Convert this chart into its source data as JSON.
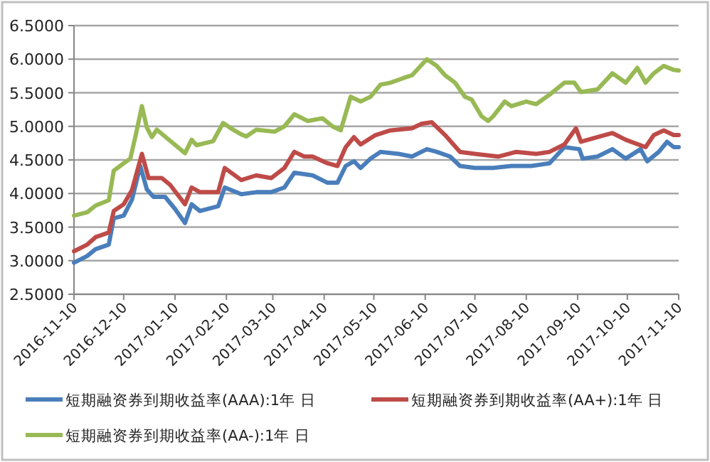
{
  "chart_data": {
    "type": "line",
    "xlim": [
      "2016-11-10",
      "2017-11-10"
    ],
    "xticks": [
      "2016-11-10",
      "2016-12-10",
      "2017-01-10",
      "2017-02-10",
      "2017-03-10",
      "2017-04-10",
      "2017-05-10",
      "2017-06-10",
      "2017-07-10",
      "2017-08-10",
      "2017-09-10",
      "2017-10-10",
      "2017-11-10"
    ],
    "ylim": [
      2.5,
      6.5
    ],
    "yticks": [
      {
        "value": 2.5,
        "label": "2.5000"
      },
      {
        "value": 3,
        "label": "3.0000"
      },
      {
        "value": 3.5,
        "label": "3.5000"
      },
      {
        "value": 4,
        "label": "4.0000"
      },
      {
        "value": 4.5,
        "label": "4.5000"
      },
      {
        "value": 5,
        "label": "5.0000"
      },
      {
        "value": 5.5,
        "label": "5.5000"
      },
      {
        "value": 6,
        "label": "6.0000"
      },
      {
        "value": 6.5,
        "label": "6.5000"
      }
    ],
    "grid": "y",
    "legend": "bottom",
    "line_style": "solid",
    "marker": "none",
    "series": [
      {
        "name": "短期融资券到期收益率(AAA):1年 日",
        "color": "#4a7ebb",
        "x": [
          "2016-11-10",
          "2016-11-18",
          "2016-11-23",
          "2016-12-01",
          "2016-12-04",
          "2016-12-10",
          "2016-12-15",
          "2016-12-20",
          "2016-12-24",
          "2016-12-28",
          "2017-01-04",
          "2017-01-10",
          "2017-01-16",
          "2017-01-20",
          "2017-01-25",
          "2017-02-05",
          "2017-02-09",
          "2017-02-19",
          "2017-02-28",
          "2017-03-09",
          "2017-03-17",
          "2017-03-23",
          "2017-04-03",
          "2017-04-12",
          "2017-04-18",
          "2017-04-23",
          "2017-04-28",
          "2017-05-02",
          "2017-05-08",
          "2017-05-14",
          "2017-05-25",
          "2017-06-02",
          "2017-06-11",
          "2017-06-17",
          "2017-06-25",
          "2017-07-01",
          "2017-07-10",
          "2017-07-21",
          "2017-08-01",
          "2017-08-13",
          "2017-08-24",
          "2017-09-02",
          "2017-09-11",
          "2017-09-13",
          "2017-09-22",
          "2017-10-01",
          "2017-10-09",
          "2017-10-18",
          "2017-10-22",
          "2017-10-29",
          "2017-11-03",
          "2017-11-07",
          "2017-11-10"
        ],
        "values": [
          2.97,
          3.07,
          3.17,
          3.24,
          3.63,
          3.67,
          3.91,
          4.41,
          4.06,
          3.95,
          3.95,
          3.77,
          3.56,
          3.84,
          3.74,
          3.81,
          4.09,
          3.99,
          4.02,
          4.02,
          4.09,
          4.31,
          4.27,
          4.16,
          4.16,
          4.41,
          4.48,
          4.38,
          4.52,
          4.62,
          4.59,
          4.55,
          4.66,
          4.62,
          4.55,
          4.41,
          4.38,
          4.38,
          4.41,
          4.41,
          4.45,
          4.69,
          4.66,
          4.52,
          4.55,
          4.66,
          4.52,
          4.66,
          4.48,
          4.62,
          4.77,
          4.69,
          4.69
        ]
      },
      {
        "name": "短期融资券到期收益率(AA+):1年 日",
        "color": "#be4b48",
        "x": [
          "2016-11-10",
          "2016-11-18",
          "2016-11-23",
          "2016-12-01",
          "2016-12-04",
          "2016-12-10",
          "2016-12-15",
          "2016-12-21",
          "2016-12-25",
          "2017-01-02",
          "2017-01-07",
          "2017-01-16",
          "2017-01-20",
          "2017-01-25",
          "2017-02-05",
          "2017-02-09",
          "2017-02-19",
          "2017-02-28",
          "2017-03-09",
          "2017-03-17",
          "2017-03-23",
          "2017-03-29",
          "2017-04-03",
          "2017-04-12",
          "2017-04-18",
          "2017-04-23",
          "2017-04-28",
          "2017-05-02",
          "2017-05-11",
          "2017-05-20",
          "2017-06-02",
          "2017-06-08",
          "2017-06-14",
          "2017-06-22",
          "2017-07-01",
          "2017-07-10",
          "2017-07-24",
          "2017-08-04",
          "2017-08-16",
          "2017-08-24",
          "2017-09-02",
          "2017-09-09",
          "2017-09-12",
          "2017-09-22",
          "2017-10-01",
          "2017-10-09",
          "2017-10-21",
          "2017-10-26",
          "2017-11-01",
          "2017-11-07",
          "2017-11-10"
        ],
        "values": [
          3.14,
          3.24,
          3.35,
          3.42,
          3.74,
          3.84,
          4.05,
          4.59,
          4.23,
          4.23,
          4.13,
          3.84,
          4.09,
          4.02,
          4.02,
          4.38,
          4.2,
          4.27,
          4.23,
          4.38,
          4.62,
          4.55,
          4.55,
          4.45,
          4.41,
          4.69,
          4.84,
          4.73,
          4.87,
          4.94,
          4.97,
          5.04,
          5.06,
          4.87,
          4.62,
          4.59,
          4.55,
          4.62,
          4.59,
          4.62,
          4.73,
          4.97,
          4.77,
          4.84,
          4.9,
          4.8,
          4.69,
          4.87,
          4.94,
          4.87,
          4.87
        ]
      },
      {
        "name": "短期融资券到期收益率(AA-):1年 日",
        "color": "#98b954",
        "x": [
          "2016-11-10",
          "2016-11-18",
          "2016-11-23",
          "2016-12-01",
          "2016-12-04",
          "2016-12-10",
          "2016-12-14",
          "2016-12-17",
          "2016-12-21",
          "2016-12-24",
          "2016-12-27",
          "2016-12-30",
          "2017-01-16",
          "2017-01-20",
          "2017-01-23",
          "2017-02-02",
          "2017-02-08",
          "2017-02-14",
          "2017-02-19",
          "2017-02-22",
          "2017-02-28",
          "2017-03-11",
          "2017-03-17",
          "2017-03-23",
          "2017-03-31",
          "2017-04-09",
          "2017-04-15",
          "2017-04-20",
          "2017-04-26",
          "2017-05-02",
          "2017-05-08",
          "2017-05-14",
          "2017-05-20",
          "2017-05-28",
          "2017-06-02",
          "2017-06-11",
          "2017-06-17",
          "2017-06-22",
          "2017-06-28",
          "2017-07-04",
          "2017-07-08",
          "2017-07-14",
          "2017-07-18",
          "2017-07-21",
          "2017-07-28",
          "2017-08-01",
          "2017-08-10",
          "2017-08-16",
          "2017-08-24",
          "2017-09-02",
          "2017-09-08",
          "2017-09-12",
          "2017-09-22",
          "2017-10-01",
          "2017-10-09",
          "2017-10-16",
          "2017-10-21",
          "2017-10-26",
          "2017-11-01",
          "2017-11-07",
          "2017-11-10"
        ],
        "values": [
          3.67,
          3.72,
          3.82,
          3.9,
          4.34,
          4.45,
          4.52,
          4.84,
          5.3,
          4.98,
          4.84,
          4.95,
          4.6,
          4.8,
          4.72,
          4.78,
          5.05,
          4.95,
          4.88,
          4.85,
          4.95,
          4.92,
          5.0,
          5.18,
          5.08,
          5.12,
          5.0,
          4.94,
          5.44,
          5.37,
          5.44,
          5.62,
          5.65,
          5.72,
          5.76,
          6.0,
          5.9,
          5.76,
          5.65,
          5.44,
          5.4,
          5.15,
          5.08,
          5.15,
          5.37,
          5.3,
          5.37,
          5.33,
          5.47,
          5.65,
          5.65,
          5.51,
          5.55,
          5.79,
          5.65,
          5.87,
          5.65,
          5.79,
          5.9,
          5.84,
          5.83
        ]
      }
    ]
  }
}
